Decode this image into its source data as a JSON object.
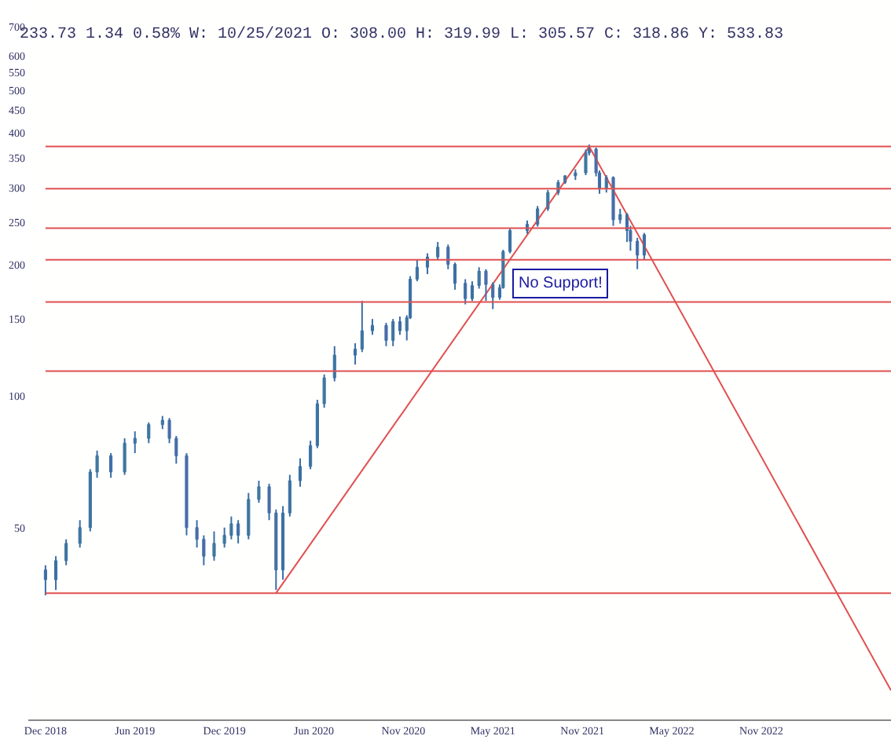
{
  "chart_data": {
    "type": "candlestick",
    "title": "233.73 1.34 0.58% W: 10/25/2021 O: 308.00 H: 319.99 L: 305.57 C: 318.86 Y: 533.83",
    "color": "#3a6ea5",
    "colors": [
      "#9d6cc0",
      "#5fae7a",
      "#5fae7a",
      "#5fae7a",
      "#5fae7a",
      "#5fae7a",
      "#9d6cc0",
      "#5fae7a",
      "#5fae7a",
      "#5fae7a",
      "#5fae7a",
      "#9d6cc0",
      "#9d6cc0",
      "#9d6cc0",
      "#9d6cc0",
      "#9d6cc0",
      "#5fae7a",
      "#5fae7a",
      "#5fae7a",
      "#9d6cc0",
      "#5fae7a",
      "#5fae7a",
      "#9d6cc0",
      "#9d6cc0",
      "#5fae7a",
      "#5fae7a",
      "#5fae7a",
      "#5fae7a",
      "#5fae7a",
      "#5fae7a",
      "#5fae7a",
      "#5fae7a",
      "#5fae7a",
      "#5fae7a",
      "#9d6cc0",
      "#5fae7a",
      "#9d6cc0",
      "#5fae7a",
      "#5fae7a",
      "#5fae7a",
      "#5fae7a",
      "#5fae7a",
      "#9d6cc0",
      "#9d6cc0",
      "#9d6cc0",
      "#5fae7a",
      "#5fae7a",
      "#9d6cc0",
      "#9d6cc0",
      "#5fae7a",
      "#5fae7a",
      "#5fae7a",
      "#5fae7a",
      "#5fae7a",
      "#5fae7a",
      "#5fae7a",
      "#5fae7a",
      "#5fae7a",
      "#5fae7a",
      "#5fae7a",
      "#9d6cc0",
      "#9d6cc0",
      "#5fae7a",
      "#9d6cc0",
      "#5fae7a",
      "#9d6cc0",
      "#9d6cc0",
      "#9d6cc0",
      "#5fae7a"
    ],
    "x": [
      "2018-12-03",
      "2018-12-24",
      "2019-01-14",
      "2019-02-11",
      "2019-03-04",
      "2019-03-18",
      "2019-04-15",
      "2019-05-13",
      "2019-06-03",
      "2019-07-01",
      "2019-07-29",
      "2019-08-12",
      "2019-08-26",
      "2019-09-16",
      "2019-10-07",
      "2019-10-21",
      "2019-11-11",
      "2019-12-02",
      "2019-12-16",
      "2019-12-30",
      "2020-01-20",
      "2020-02-10",
      "2020-03-02",
      "2020-03-16",
      "2020-03-30",
      "2020-04-13",
      "2020-05-04",
      "2020-05-25",
      "2020-06-08",
      "2020-06-22",
      "2020-07-13",
      "2020-08-24",
      "2020-09-07",
      "2020-09-28",
      "2020-10-26",
      "2020-11-09",
      "2020-11-23",
      "2020-12-07",
      "2020-12-14",
      "2020-12-28",
      "2021-01-18",
      "2021-02-08",
      "2021-03-01",
      "2021-03-15",
      "2021-04-05",
      "2021-04-19",
      "2021-05-03",
      "2021-05-17",
      "2021-05-31",
      "2021-06-14",
      "2021-06-21",
      "2021-07-05",
      "2021-08-09",
      "2021-08-30",
      "2021-09-20",
      "2021-10-11",
      "2021-10-25",
      "2021-11-15",
      "2021-12-06",
      "2021-12-13",
      "2021-12-27",
      "2022-01-03",
      "2022-01-17",
      "2022-01-31",
      "2022-02-14",
      "2022-02-28",
      "2022-03-07",
      "2022-03-21",
      "2022-04-04"
    ],
    "ohlc": [
      [
        40,
        41,
        35,
        38
      ],
      [
        38,
        43,
        36,
        42
      ],
      [
        42,
        47,
        41,
        46
      ],
      [
        46,
        52,
        45,
        50
      ],
      [
        50,
        68,
        49,
        67
      ],
      [
        67,
        75,
        65,
        73
      ],
      [
        73,
        74,
        65,
        67
      ],
      [
        67,
        80,
        66,
        78
      ],
      [
        78,
        83,
        74,
        80
      ],
      [
        80,
        87,
        78,
        86
      ],
      [
        86,
        90,
        84,
        88
      ],
      [
        88,
        89,
        78,
        80
      ],
      [
        80,
        81,
        70,
        73
      ],
      [
        73,
        74,
        48,
        50
      ],
      [
        50,
        52,
        45,
        47
      ],
      [
        47,
        48,
        41,
        43
      ],
      [
        43,
        49,
        42,
        46
      ],
      [
        46,
        50,
        45,
        48
      ],
      [
        48,
        53,
        47,
        51
      ],
      [
        51,
        52,
        46,
        48
      ],
      [
        48,
        60,
        47,
        58
      ],
      [
        58,
        64,
        57,
        62
      ],
      [
        62,
        63,
        52,
        54
      ],
      [
        54,
        55,
        36,
        40
      ],
      [
        40,
        56,
        38,
        54
      ],
      [
        54,
        66,
        53,
        64
      ],
      [
        64,
        72,
        62,
        69
      ],
      [
        69,
        79,
        68,
        77
      ],
      [
        77,
        98,
        76,
        96
      ],
      [
        96,
        112,
        94,
        110
      ],
      [
        110,
        130,
        108,
        124
      ],
      [
        124,
        132,
        118,
        128
      ],
      [
        128,
        165,
        126,
        141
      ],
      [
        141,
        150,
        138,
        145
      ],
      [
        145,
        147,
        130,
        134
      ],
      [
        134,
        150,
        130,
        148
      ],
      [
        148,
        152,
        138,
        141
      ],
      [
        141,
        153,
        134,
        151
      ],
      [
        151,
        188,
        150,
        185
      ],
      [
        185,
        205,
        183,
        197
      ],
      [
        197,
        212,
        190,
        208
      ],
      [
        208,
        225,
        205,
        219
      ],
      [
        219,
        222,
        195,
        200
      ],
      [
        200,
        202,
        175,
        181
      ],
      [
        181,
        185,
        162,
        167
      ],
      [
        167,
        183,
        165,
        179
      ],
      [
        179,
        197,
        176,
        193
      ],
      [
        193,
        195,
        165,
        180
      ],
      [
        180,
        182,
        158,
        168
      ],
      [
        168,
        180,
        166,
        177
      ],
      [
        177,
        216,
        176,
        214
      ],
      [
        214,
        242,
        212,
        239
      ],
      [
        239,
        252,
        235,
        247
      ],
      [
        247,
        272,
        244,
        268
      ],
      [
        268,
        296,
        265,
        292
      ],
      [
        292,
        312,
        288,
        308
      ],
      [
        308,
        319.99,
        305.57,
        318.86
      ],
      [
        318.86,
        330,
        312,
        324
      ],
      [
        324,
        366,
        320,
        360
      ],
      [
        360,
        376,
        355,
        367
      ],
      [
        367,
        370,
        318,
        324
      ],
      [
        324,
        328,
        290,
        298
      ],
      [
        298,
        320,
        292,
        316
      ],
      [
        316,
        318,
        245,
        253
      ],
      [
        253,
        268,
        248,
        260
      ],
      [
        260,
        262,
        225,
        239
      ],
      [
        239,
        245,
        215,
        226
      ],
      [
        226,
        230,
        195,
        210
      ],
      [
        210,
        236,
        205,
        233.73
      ]
    ],
    "series": [
      {
        "type": "line",
        "color": "#e05050",
        "x": [
          "2020-03-16",
          "2021-12-13"
        ],
        "values": [
          35.4,
          372
        ]
      },
      {
        "type": "line",
        "color": "#e05050",
        "x": [
          "2021-12-13",
          "2023-08-19"
        ],
        "values": [
          372,
          21.2
        ]
      }
    ],
    "ref_lines": [
      {
        "axis": "y",
        "value": 372,
        "color": "#e05050"
      },
      {
        "axis": "y",
        "value": 298,
        "color": "#e05050"
      },
      {
        "axis": "y",
        "value": 242,
        "color": "#e05050"
      },
      {
        "axis": "y",
        "value": 205,
        "color": "#e05050"
      },
      {
        "axis": "y",
        "value": 164,
        "color": "#e05050"
      },
      {
        "axis": "y",
        "value": 114,
        "color": "#e05050"
      },
      {
        "axis": "y",
        "value": 35.4,
        "color": "#e05050"
      }
    ],
    "annotations": [
      "No Support!"
    ],
    "log": "y",
    "xlim": [
      "2018-10-29",
      "2023-08-19"
    ],
    "xticks": [
      {
        "value": "2018-12-03",
        "label": "Dec 2018"
      },
      {
        "value": "2019-06-03",
        "label": "Jun 2019"
      },
      {
        "value": "2019-12-02",
        "label": "Dec 2019"
      },
      {
        "value": "2020-06-01",
        "label": "Jun 2020"
      },
      {
        "value": "2020-11-30",
        "label": "Nov 2020"
      },
      {
        "value": "2021-05-31",
        "label": "May 2021"
      },
      {
        "value": "2021-11-29",
        "label": "Nov 2021"
      },
      {
        "value": "2022-05-30",
        "label": "May 2022"
      },
      {
        "value": "2022-11-28",
        "label": "Nov 2022"
      }
    ],
    "ylim": [
      18.2,
      805
    ],
    "yticks": [
      50,
      100,
      150,
      200,
      250,
      300,
      350,
      400,
      450,
      500,
      550,
      600,
      700
    ]
  }
}
